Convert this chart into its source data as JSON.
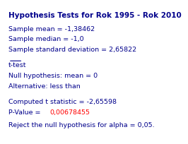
{
  "title": "Hypothesis Tests for Rok 1995 - Rok 2010",
  "line1": "Sample mean = -1,38462",
  "line2": "Sample median = -1,0",
  "line3": "Sample standard deviation = 2,65822",
  "section": "t-test",
  "line4": "Null hypothesis: mean = 0",
  "line5": "Alternative: less than",
  "line6": "Computed t statistic = -2,65598",
  "line7_prefix": "P-Value = ",
  "line7_value": "0,00678455",
  "line8": "Reject the null hypothesis for alpha = 0,05.",
  "bg_color": "#ffffff",
  "text_color": "#00008B",
  "red_color": "#ff0000",
  "title_fontsize": 7.5,
  "body_fontsize": 6.8,
  "section_fontsize": 6.8
}
